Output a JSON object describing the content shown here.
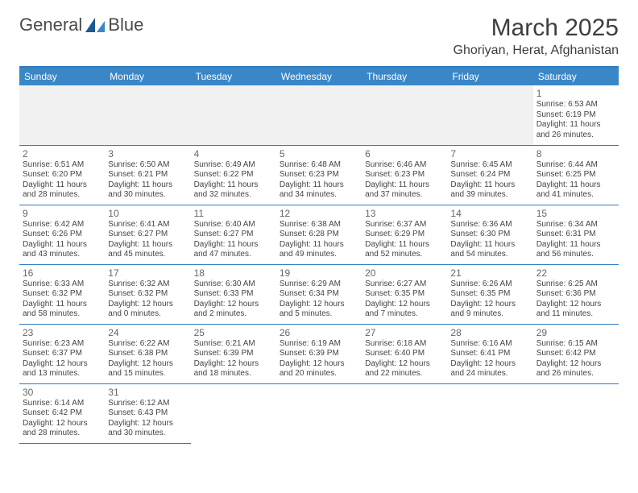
{
  "logo": {
    "textA": "General",
    "textB": "Blue"
  },
  "title": "March 2025",
  "location": "Ghoriyan, Herat, Afghanistan",
  "colors": {
    "headerBar": "#3a87c7",
    "border": "#2f7bbf",
    "emptyCell": "#f1f1f1",
    "text": "#333333",
    "daynum": "#666666"
  },
  "weekdays": [
    "Sunday",
    "Monday",
    "Tuesday",
    "Wednesday",
    "Thursday",
    "Friday",
    "Saturday"
  ],
  "leadingEmpty": 6,
  "days": [
    {
      "n": 1,
      "sr": "6:53 AM",
      "ss": "6:19 PM",
      "dlh": 11,
      "dlm": 26
    },
    {
      "n": 2,
      "sr": "6:51 AM",
      "ss": "6:20 PM",
      "dlh": 11,
      "dlm": 28
    },
    {
      "n": 3,
      "sr": "6:50 AM",
      "ss": "6:21 PM",
      "dlh": 11,
      "dlm": 30
    },
    {
      "n": 4,
      "sr": "6:49 AM",
      "ss": "6:22 PM",
      "dlh": 11,
      "dlm": 32
    },
    {
      "n": 5,
      "sr": "6:48 AM",
      "ss": "6:23 PM",
      "dlh": 11,
      "dlm": 34
    },
    {
      "n": 6,
      "sr": "6:46 AM",
      "ss": "6:23 PM",
      "dlh": 11,
      "dlm": 37
    },
    {
      "n": 7,
      "sr": "6:45 AM",
      "ss": "6:24 PM",
      "dlh": 11,
      "dlm": 39
    },
    {
      "n": 8,
      "sr": "6:44 AM",
      "ss": "6:25 PM",
      "dlh": 11,
      "dlm": 41
    },
    {
      "n": 9,
      "sr": "6:42 AM",
      "ss": "6:26 PM",
      "dlh": 11,
      "dlm": 43
    },
    {
      "n": 10,
      "sr": "6:41 AM",
      "ss": "6:27 PM",
      "dlh": 11,
      "dlm": 45
    },
    {
      "n": 11,
      "sr": "6:40 AM",
      "ss": "6:27 PM",
      "dlh": 11,
      "dlm": 47
    },
    {
      "n": 12,
      "sr": "6:38 AM",
      "ss": "6:28 PM",
      "dlh": 11,
      "dlm": 49
    },
    {
      "n": 13,
      "sr": "6:37 AM",
      "ss": "6:29 PM",
      "dlh": 11,
      "dlm": 52
    },
    {
      "n": 14,
      "sr": "6:36 AM",
      "ss": "6:30 PM",
      "dlh": 11,
      "dlm": 54
    },
    {
      "n": 15,
      "sr": "6:34 AM",
      "ss": "6:31 PM",
      "dlh": 11,
      "dlm": 56
    },
    {
      "n": 16,
      "sr": "6:33 AM",
      "ss": "6:32 PM",
      "dlh": 11,
      "dlm": 58
    },
    {
      "n": 17,
      "sr": "6:32 AM",
      "ss": "6:32 PM",
      "dlh": 12,
      "dlm": 0
    },
    {
      "n": 18,
      "sr": "6:30 AM",
      "ss": "6:33 PM",
      "dlh": 12,
      "dlm": 2
    },
    {
      "n": 19,
      "sr": "6:29 AM",
      "ss": "6:34 PM",
      "dlh": 12,
      "dlm": 5
    },
    {
      "n": 20,
      "sr": "6:27 AM",
      "ss": "6:35 PM",
      "dlh": 12,
      "dlm": 7
    },
    {
      "n": 21,
      "sr": "6:26 AM",
      "ss": "6:35 PM",
      "dlh": 12,
      "dlm": 9
    },
    {
      "n": 22,
      "sr": "6:25 AM",
      "ss": "6:36 PM",
      "dlh": 12,
      "dlm": 11
    },
    {
      "n": 23,
      "sr": "6:23 AM",
      "ss": "6:37 PM",
      "dlh": 12,
      "dlm": 13
    },
    {
      "n": 24,
      "sr": "6:22 AM",
      "ss": "6:38 PM",
      "dlh": 12,
      "dlm": 15
    },
    {
      "n": 25,
      "sr": "6:21 AM",
      "ss": "6:39 PM",
      "dlh": 12,
      "dlm": 18
    },
    {
      "n": 26,
      "sr": "6:19 AM",
      "ss": "6:39 PM",
      "dlh": 12,
      "dlm": 20
    },
    {
      "n": 27,
      "sr": "6:18 AM",
      "ss": "6:40 PM",
      "dlh": 12,
      "dlm": 22
    },
    {
      "n": 28,
      "sr": "6:16 AM",
      "ss": "6:41 PM",
      "dlh": 12,
      "dlm": 24
    },
    {
      "n": 29,
      "sr": "6:15 AM",
      "ss": "6:42 PM",
      "dlh": 12,
      "dlm": 26
    },
    {
      "n": 30,
      "sr": "6:14 AM",
      "ss": "6:42 PM",
      "dlh": 12,
      "dlm": 28
    },
    {
      "n": 31,
      "sr": "6:12 AM",
      "ss": "6:43 PM",
      "dlh": 12,
      "dlm": 30
    }
  ]
}
